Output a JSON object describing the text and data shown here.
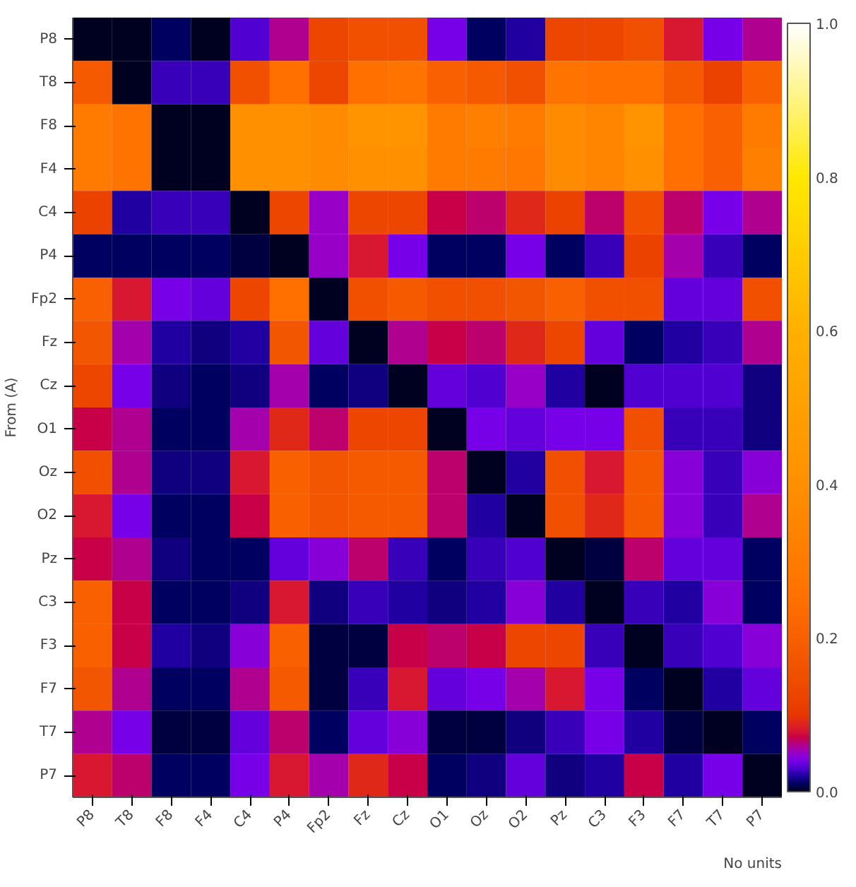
{
  "chart_data": {
    "type": "heatmap",
    "ylabel": "From (A)",
    "clabel": "No units",
    "categories": [
      "P8",
      "T8",
      "F8",
      "F4",
      "C4",
      "P4",
      "Fp2",
      "Fz",
      "Cz",
      "O1",
      "Oz",
      "O2",
      "Pz",
      "C3",
      "F3",
      "F7",
      "T7",
      "P7"
    ],
    "y_categories": [
      "P8",
      "T8",
      "F8",
      "F4",
      "C4",
      "P4",
      "Fp2",
      "Fz",
      "Cz",
      "O1",
      "Oz",
      "O2",
      "Pz",
      "C3",
      "F3",
      "F7",
      "T7",
      "P7"
    ],
    "cells": [
      [
        0,
        0,
        0.01,
        0,
        0.03,
        0.06,
        0.13,
        0.15,
        0.15,
        0.04,
        0.01,
        0.02,
        0.13,
        0.13,
        0.15,
        0.08,
        0.04,
        0.06
      ],
      [
        0.18,
        0,
        0.025,
        0.025,
        0.15,
        0.25,
        0.13,
        0.25,
        0.27,
        0.2,
        0.18,
        0.15,
        0.27,
        0.25,
        0.25,
        0.18,
        0.12,
        0.2
      ],
      [
        0.3,
        0.27,
        0,
        0,
        0.4,
        0.4,
        0.38,
        0.42,
        0.42,
        0.3,
        0.32,
        0.3,
        0.38,
        0.35,
        0.42,
        0.25,
        0.2,
        0.3
      ],
      [
        0.3,
        0.27,
        0,
        0,
        0.4,
        0.4,
        0.38,
        0.4,
        0.4,
        0.3,
        0.3,
        0.28,
        0.38,
        0.35,
        0.4,
        0.25,
        0.2,
        0.32
      ],
      [
        0.12,
        0.02,
        0.025,
        0.025,
        0,
        0.13,
        0.05,
        0.13,
        0.13,
        0.07,
        0.065,
        0.09,
        0.12,
        0.065,
        0.15,
        0.065,
        0.04,
        0.06
      ],
      [
        0.01,
        0.01,
        0.01,
        0.01,
        0.005,
        0,
        0.05,
        0.08,
        0.04,
        0.01,
        0.01,
        0.04,
        0.01,
        0.025,
        0.12,
        0.055,
        0.025,
        0.01
      ],
      [
        0.2,
        0.08,
        0.04,
        0.035,
        0.13,
        0.25,
        0,
        0.15,
        0.18,
        0.15,
        0.15,
        0.17,
        0.2,
        0.15,
        0.15,
        0.035,
        0.035,
        0.15
      ],
      [
        0.17,
        0.055,
        0.02,
        0.015,
        0.02,
        0.17,
        0.035,
        0,
        0.06,
        0.07,
        0.065,
        0.09,
        0.13,
        0.035,
        0.01,
        0.02,
        0.025,
        0.06
      ],
      [
        0.13,
        0.04,
        0.015,
        0.01,
        0.015,
        0.055,
        0.01,
        0.015,
        0,
        0.035,
        0.03,
        0.05,
        0.02,
        0,
        0.03,
        0.03,
        0.03,
        0.015
      ],
      [
        0.07,
        0.06,
        0.01,
        0.01,
        0.055,
        0.09,
        0.065,
        0.13,
        0.13,
        0,
        0.04,
        0.035,
        0.04,
        0.04,
        0.15,
        0.025,
        0.025,
        0.015
      ],
      [
        0.15,
        0.06,
        0.015,
        0.015,
        0.08,
        0.2,
        0.17,
        0.18,
        0.18,
        0.065,
        0,
        0.02,
        0.15,
        0.08,
        0.18,
        0.045,
        0.025,
        0.045
      ],
      [
        0.08,
        0.04,
        0.01,
        0.01,
        0.07,
        0.2,
        0.17,
        0.18,
        0.18,
        0.065,
        0.02,
        0,
        0.15,
        0.09,
        0.18,
        0.045,
        0.025,
        0.06
      ],
      [
        0.07,
        0.06,
        0.015,
        0.01,
        0.01,
        0.035,
        0.045,
        0.065,
        0.025,
        0.01,
        0.025,
        0.03,
        0,
        0.005,
        0.065,
        0.035,
        0.035,
        0.01
      ],
      [
        0.2,
        0.07,
        0.01,
        0.01,
        0.015,
        0.08,
        0.015,
        0.025,
        0.02,
        0.015,
        0.02,
        0.045,
        0.02,
        0,
        0.025,
        0.02,
        0.045,
        0.01
      ],
      [
        0.2,
        0.07,
        0.02,
        0.015,
        0.045,
        0.2,
        0.005,
        0.005,
        0.07,
        0.065,
        0.07,
        0.13,
        0.13,
        0.025,
        0,
        0.025,
        0.03,
        0.045
      ],
      [
        0.17,
        0.06,
        0.01,
        0.01,
        0.06,
        0.18,
        0.005,
        0.025,
        0.08,
        0.035,
        0.04,
        0.055,
        0.08,
        0.04,
        0.01,
        0,
        0.02,
        0.035
      ],
      [
        0.06,
        0.04,
        0.005,
        0.005,
        0.035,
        0.065,
        0.01,
        0.035,
        0.045,
        0.005,
        0.005,
        0.015,
        0.025,
        0.04,
        0.02,
        0.005,
        0,
        0.01
      ],
      [
        0.08,
        0.065,
        0.01,
        0.01,
        0.04,
        0.08,
        0.055,
        0.09,
        0.07,
        0.01,
        0.015,
        0.035,
        0.015,
        0.02,
        0.07,
        0.02,
        0.04,
        0
      ]
    ],
    "clim": [
      0.0,
      1.0
    ],
    "cticks": [
      {
        "value": 0,
        "label": "0.0"
      },
      {
        "value": 0.2,
        "label": "0.2"
      },
      {
        "value": 0.4,
        "label": "0.4"
      },
      {
        "value": 0.6,
        "label": "0.6"
      },
      {
        "value": 0.8,
        "label": "0.8"
      },
      {
        "value": 1,
        "label": "1.0"
      }
    ]
  }
}
